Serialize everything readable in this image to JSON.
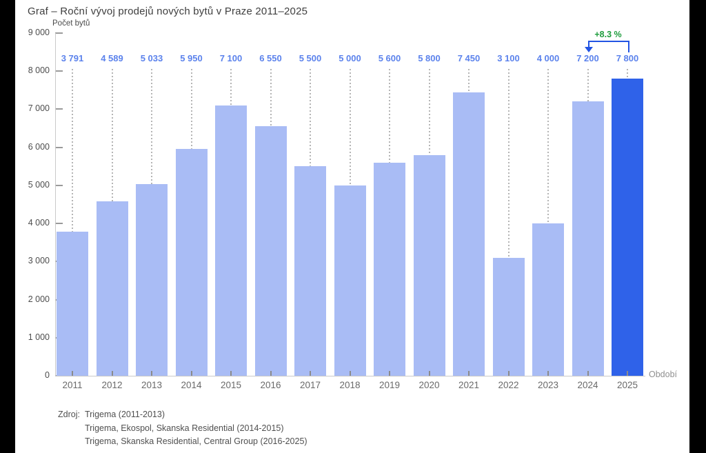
{
  "title": "Graf – Roční vývoj prodejů nových bytů v Praze 2011–2025",
  "chart_data": {
    "type": "bar",
    "title": "Graf – Roční vývoj prodejů nových bytů v Praze 2011–2025",
    "ylabel": "Počet bytů",
    "xlabel": "Období",
    "categories": [
      2011,
      2012,
      2013,
      2014,
      2015,
      2016,
      2017,
      2018,
      2019,
      2020,
      2021,
      2022,
      2023,
      2024,
      2025
    ],
    "values": [
      3791,
      4589,
      5033,
      5950,
      7100,
      6550,
      5500,
      5000,
      5600,
      5800,
      7450,
      3100,
      4000,
      7200,
      7800
    ],
    "value_labels": [
      "3 791",
      "4 589",
      "5 033",
      "5 950",
      "7 100",
      "6 550",
      "5 500",
      "5 000",
      "5 600",
      "5 800",
      "7 450",
      "3 100",
      "4 000",
      "7 200",
      "7 800"
    ],
    "ylim": [
      0,
      9000
    ],
    "ytick_step": 1000,
    "yticks": [
      "0",
      "1 000",
      "2 000",
      "3 000",
      "4 000",
      "5 000",
      "6 000",
      "7 000",
      "8 000",
      "9 000"
    ],
    "grid": "off",
    "legend": "none",
    "bar_color": "#a9bcf5",
    "highlight_color": "#2f62e9",
    "highlight_index": 14,
    "value_label_color": "#5b82ec",
    "annotation": {
      "text": "+8.3 %",
      "color": "#1d9c3c",
      "bracket_color": "#2254e3",
      "from_category": 2024,
      "to_category": 2025
    }
  },
  "source": {
    "label": "Zdroj:",
    "lines": [
      "Trigema (2011-2013)",
      "Trigema, Ekospol, Skanska Residential (2014-2015)",
      "Trigema, Skanska Residential, Central Group (2016-2025)"
    ]
  }
}
